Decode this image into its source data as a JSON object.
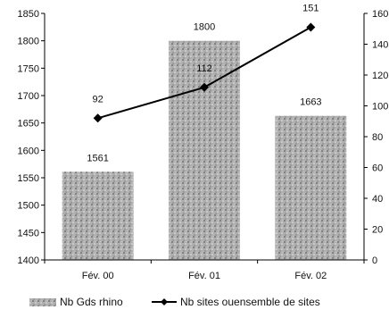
{
  "chart_data": {
    "type": "bar",
    "categories": [
      "Fév. 00",
      "Fév. 01",
      "Fév. 02"
    ],
    "bar_series": {
      "name": "Nb Gds rhino",
      "values": [
        1561,
        1800,
        1663
      ],
      "labels": [
        "1561",
        "1800",
        "1663"
      ]
    },
    "line_series": {
      "name": "Nb sites ouensemble de sites",
      "values": [
        92,
        112,
        151
      ],
      "labels": [
        "92",
        "112",
        "151"
      ]
    },
    "y_left": {
      "range": [
        1400,
        1850
      ],
      "ticks": [
        "1400",
        "1450",
        "1500",
        "1550",
        "1600",
        "1650",
        "1700",
        "1750",
        "1800",
        "1850"
      ]
    },
    "y_right": {
      "range": [
        0,
        160
      ],
      "ticks": [
        "0",
        "20",
        "40",
        "60",
        "80",
        "100",
        "120",
        "140",
        "160"
      ]
    },
    "legend_position": "bottom",
    "grid": false,
    "colors": {
      "bar": "#a8a8a8",
      "line": "#000000"
    }
  }
}
